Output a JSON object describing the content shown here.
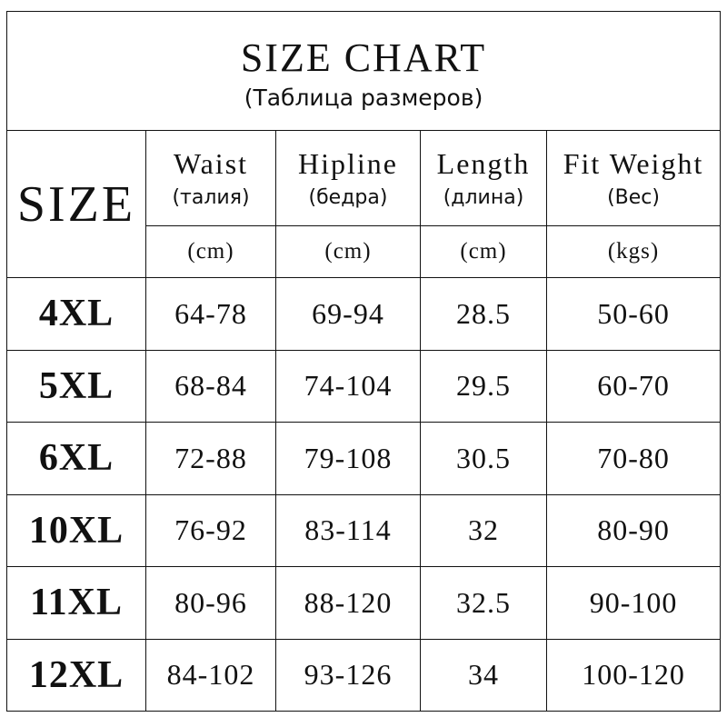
{
  "title": "SIZE CHART",
  "subtitle": "(Таблица размеров)",
  "size_header": "SIZE",
  "columns": [
    {
      "en": "Waist",
      "ru": "(талия)",
      "unit": "(cm)"
    },
    {
      "en": "Hipline",
      "ru": "(бедра)",
      "unit": "(cm)"
    },
    {
      "en": "Length",
      "ru": "(длина)",
      "unit": "(cm)"
    },
    {
      "en": "Fit Weight",
      "ru": "(Вес)",
      "unit": "(kgs)"
    }
  ],
  "rows": [
    {
      "size": "4XL",
      "values": [
        "64-78",
        "69-94",
        "28.5",
        "50-60"
      ]
    },
    {
      "size": "5XL",
      "values": [
        "68-84",
        "74-104",
        "29.5",
        "60-70"
      ]
    },
    {
      "size": "6XL",
      "values": [
        "72-88",
        "79-108",
        "30.5",
        "70-80"
      ]
    },
    {
      "size": "10XL",
      "values": [
        "76-92",
        "83-114",
        "32",
        "80-90"
      ]
    },
    {
      "size": "11XL",
      "values": [
        "80-96",
        "88-120",
        "32.5",
        "90-100"
      ]
    },
    {
      "size": "12XL",
      "values": [
        "84-102",
        "93-126",
        "34",
        "100-120"
      ]
    }
  ]
}
